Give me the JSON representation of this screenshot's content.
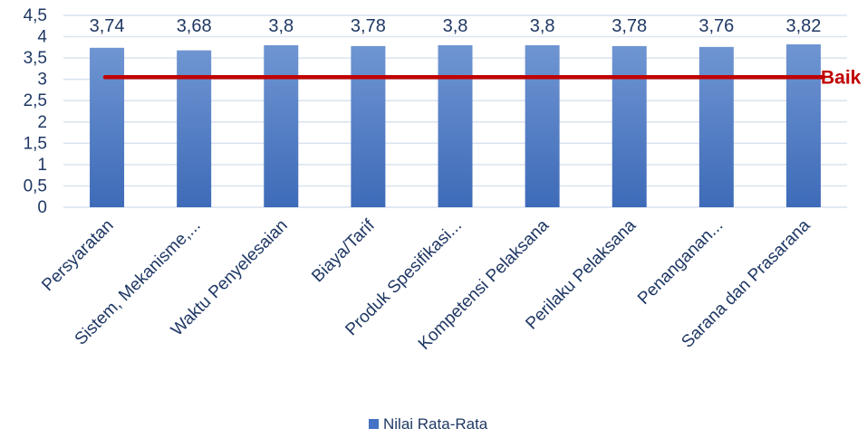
{
  "chart_data": {
    "type": "bar",
    "categories": [
      "Persyaratan",
      "Sistem, Mekanisme,...",
      "Waktu Penyelesaian",
      "Biaya/Tarif",
      "Produk Spesifikasi...",
      "Kompetensi Pelaksana",
      "Perilaku Pelaksana",
      "Penanganan...",
      "Sarana dan Prasarana"
    ],
    "series": [
      {
        "name": "Nilai Rata-Rata",
        "values": [
          3.74,
          3.68,
          3.8,
          3.78,
          3.8,
          3.8,
          3.78,
          3.76,
          3.82
        ],
        "labels": [
          "3,74",
          "3,68",
          "3,8",
          "3,78",
          "3,8",
          "3,8",
          "3,78",
          "3,76",
          "3,82"
        ],
        "color": "#4472c4"
      }
    ],
    "ylim": [
      0,
      4.5
    ],
    "yticks": [
      0,
      0.5,
      1,
      1.5,
      2,
      2.5,
      3,
      3.5,
      4,
      4.5
    ],
    "ytick_labels": [
      "0",
      "0,5",
      "1",
      "1,5",
      "2",
      "2,5",
      "3",
      "3,5",
      "4",
      "4,5"
    ],
    "reference_line": {
      "value": 3.05,
      "label": "Baik",
      "color": "#c00000"
    },
    "grid": true,
    "legend": {
      "position": "bottom"
    },
    "title": "",
    "xlabel": "",
    "ylabel": ""
  }
}
